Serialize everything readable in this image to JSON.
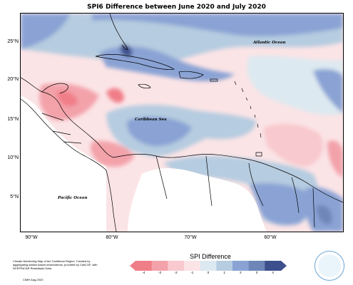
{
  "title": "SPI6 Difference between June 2020 and July 2020",
  "map": {
    "lat_ticks": [
      "25°N",
      "20°N",
      "15°N",
      "10°N",
      "5°N"
    ],
    "lon_ticks": [
      "90°W",
      "80°W",
      "70°W",
      "60°W"
    ],
    "extent": {
      "lon_min": -92.5,
      "lon_max": -52.5,
      "lat_min": 0.5,
      "lat_max": 28
    },
    "labels": {
      "atlantic": "Atlantic Ocean",
      "caribbean": "Caribbean Sea",
      "pacific": "Pacific Ocean"
    }
  },
  "legend": {
    "title": "SPI Difference",
    "ticks": [
      "-4",
      "-3",
      "-2",
      "-1",
      "0",
      "1",
      "2",
      "3",
      "4"
    ],
    "colors": [
      "#f07e88",
      "#f3a2aa",
      "#f8c9ce",
      "#fbe4e6",
      "#dde9f0",
      "#b6cce0",
      "#8aa3d4",
      "#6e86b8",
      "#3d4f8c"
    ]
  },
  "footnote": "Climate Monitoring Map of the Caribbean Region. Created by aggregating station based observations, provided by CariCOF, with NCEP/NCAR Reanalysis Data.",
  "credit": "CIMH Aug-2020"
}
